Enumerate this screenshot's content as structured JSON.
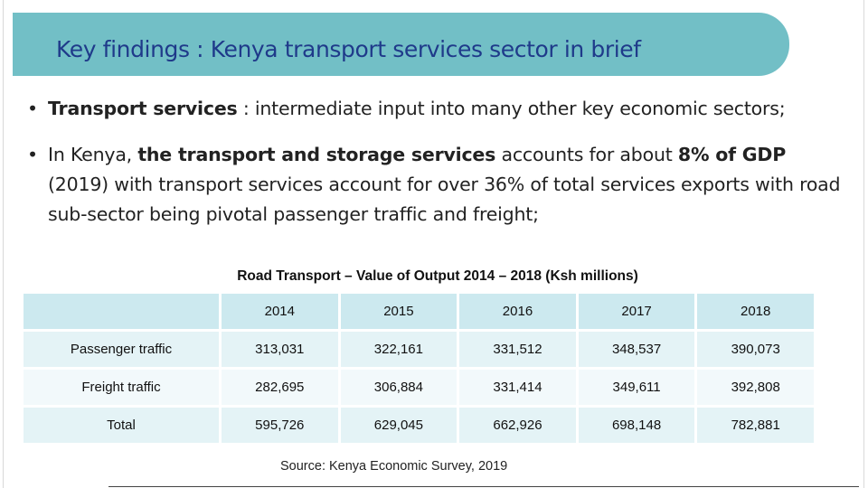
{
  "slide": {
    "title": "Key findings : Kenya transport services sector in brief",
    "bullets": [
      {
        "marker": "•",
        "bold_lead": "Transport services",
        "text": " : intermediate input into many other key economic sectors;"
      },
      {
        "marker": "•",
        "text_a": "In Kenya, ",
        "bold_a": "the transport and storage services",
        "text_b": " accounts for about ",
        "bold_b": "8% of GDP",
        "text_c": " (2019) with transport services account for over 36% of total services exports with road sub-sector being pivotal passenger traffic and freight;"
      }
    ]
  },
  "table": {
    "caption": "Road Transport – Value of Output 2014 – 2018 (Ksh millions)",
    "corner": "",
    "years": [
      "2014",
      "2015",
      "2016",
      "2017",
      "2018"
    ],
    "rows": [
      {
        "label": "Passenger traffic",
        "values": [
          "313,031",
          "322,161",
          "331,512",
          "348,537",
          "390,073"
        ]
      },
      {
        "label": "Freight traffic",
        "values": [
          "282,695",
          "306,884",
          "331,414",
          "349,611",
          "392,808"
        ]
      },
      {
        "label": "Total",
        "values": [
          "595,726",
          "629,045",
          "662,926",
          "698,148",
          "782,881"
        ]
      }
    ],
    "source": "Source: Kenya Economic Survey, 2019"
  },
  "colors": {
    "title_bar": "#72bfc6",
    "title_text": "#1f3a8a",
    "header_fill": "#cce9ef",
    "row_fill_a": "#e4f3f6",
    "row_fill_b": "#f2f9fb"
  }
}
